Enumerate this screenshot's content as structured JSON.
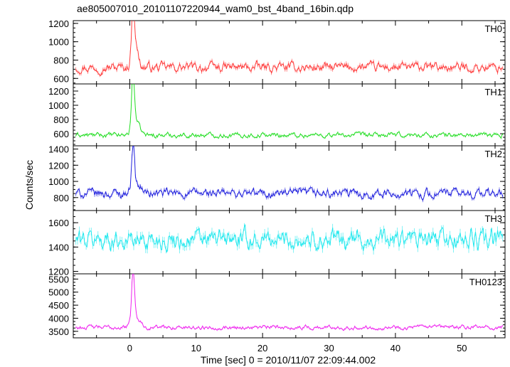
{
  "chart_data": {
    "type": "line",
    "title": "ae805007010_20101107220944_wam0_bst_4band_16bin.qdp",
    "xlabel": "Time [sec] 0 = 2010/11/07 22:09:44.002",
    "ylabel": "Counts/sec",
    "xlim": [
      -8.5,
      56.5
    ],
    "xticks": [
      0,
      10,
      20,
      30,
      40,
      50
    ],
    "grid": false,
    "panels": [
      {
        "name": "TH0",
        "color": "#ff3b3b",
        "ylim": [
          540,
          1230
        ],
        "yticks": [
          600,
          800,
          1000,
          1200
        ],
        "baseline": 720,
        "noise": 45,
        "burst": [
          {
            "t": 0.5,
            "value": 1230,
            "width": 0.3
          },
          {
            "t": 0.8,
            "value": 980,
            "width": 0.6
          }
        ],
        "x": [
          -8,
          -6,
          -4,
          -2,
          0,
          0.5,
          1,
          2,
          4,
          6,
          10,
          14,
          18,
          22,
          26,
          30,
          34,
          38,
          42,
          46,
          50,
          54,
          56
        ],
        "values": [
          700,
          720,
          710,
          700,
          700,
          1230,
          900,
          760,
          710,
          700,
          700,
          690,
          710,
          690,
          700,
          710,
          720,
          690,
          700,
          710,
          700,
          690,
          710
        ]
      },
      {
        "name": "TH1",
        "color": "#22dd22",
        "ylim": [
          430,
          1300
        ],
        "yticks": [
          600,
          800,
          1000,
          1200
        ],
        "baseline": 580,
        "noise": 30,
        "burst": [
          {
            "t": 0.5,
            "value": 1300,
            "width": 0.3
          },
          {
            "t": 0.9,
            "value": 780,
            "width": 0.8
          }
        ],
        "x": [
          -8,
          -6,
          -4,
          -2,
          0,
          0.5,
          1,
          2,
          4,
          6,
          10,
          14,
          18,
          22,
          26,
          30,
          34,
          38,
          42,
          46,
          50,
          54,
          56
        ],
        "values": [
          580,
          590,
          580,
          590,
          600,
          1300,
          760,
          640,
          600,
          590,
          590,
          580,
          590,
          580,
          590,
          600,
          590,
          580,
          590,
          600,
          590,
          600,
          590
        ]
      },
      {
        "name": "TH2",
        "color": "#2222dd",
        "ylim": [
          640,
          1440
        ],
        "yticks": [
          800,
          1000,
          1200,
          1400
        ],
        "baseline": 850,
        "noise": 50,
        "burst": [
          {
            "t": 0.5,
            "value": 1420,
            "width": 0.3
          },
          {
            "t": 1.0,
            "value": 950,
            "width": 1.0
          }
        ],
        "x": [
          -8,
          -6,
          -4,
          -2,
          0,
          0.5,
          1,
          2,
          4,
          6,
          10,
          14,
          18,
          22,
          26,
          30,
          34,
          38,
          42,
          46,
          50,
          54,
          56
        ],
        "values": [
          820,
          840,
          830,
          840,
          860,
          1420,
          930,
          900,
          870,
          860,
          860,
          850,
          860,
          850,
          870,
          880,
          860,
          850,
          860,
          870,
          850,
          860,
          880
        ]
      },
      {
        "name": "TH3",
        "color": "#22e8ee",
        "ylim": [
          1180,
          1700
        ],
        "yticks": [
          1200,
          1400,
          1600
        ],
        "baseline": 1460,
        "noise": 70,
        "burst": [],
        "x": [
          -8,
          -6,
          -4,
          -2,
          0,
          2,
          4,
          6,
          10,
          14,
          18,
          22,
          26,
          30,
          34,
          38,
          42,
          46,
          50,
          54,
          56
        ],
        "values": [
          1440,
          1470,
          1450,
          1460,
          1450,
          1470,
          1440,
          1460,
          1480,
          1450,
          1460,
          1470,
          1450,
          1460,
          1480,
          1450,
          1460,
          1440,
          1470,
          1450,
          1460
        ]
      },
      {
        "name": "TH0123",
        "color": "#ee22ee",
        "ylim": [
          3250,
          5700
        ],
        "yticks": [
          3500,
          4000,
          4500,
          5000,
          5500
        ],
        "baseline": 3650,
        "noise": 70,
        "burst": [
          {
            "t": 0.5,
            "value": 5650,
            "width": 0.3
          },
          {
            "t": 1.0,
            "value": 4000,
            "width": 0.9
          }
        ],
        "x": [
          -8,
          -6,
          -4,
          -2,
          0,
          0.5,
          1,
          2,
          4,
          6,
          10,
          14,
          18,
          22,
          26,
          30,
          34,
          38,
          42,
          46,
          50,
          54,
          56
        ],
        "values": [
          3600,
          3650,
          3640,
          3620,
          3650,
          5650,
          3980,
          3760,
          3680,
          3650,
          3660,
          3640,
          3650,
          3640,
          3660,
          3670,
          3650,
          3640,
          3650,
          3660,
          3640,
          3650,
          3680
        ]
      }
    ]
  }
}
